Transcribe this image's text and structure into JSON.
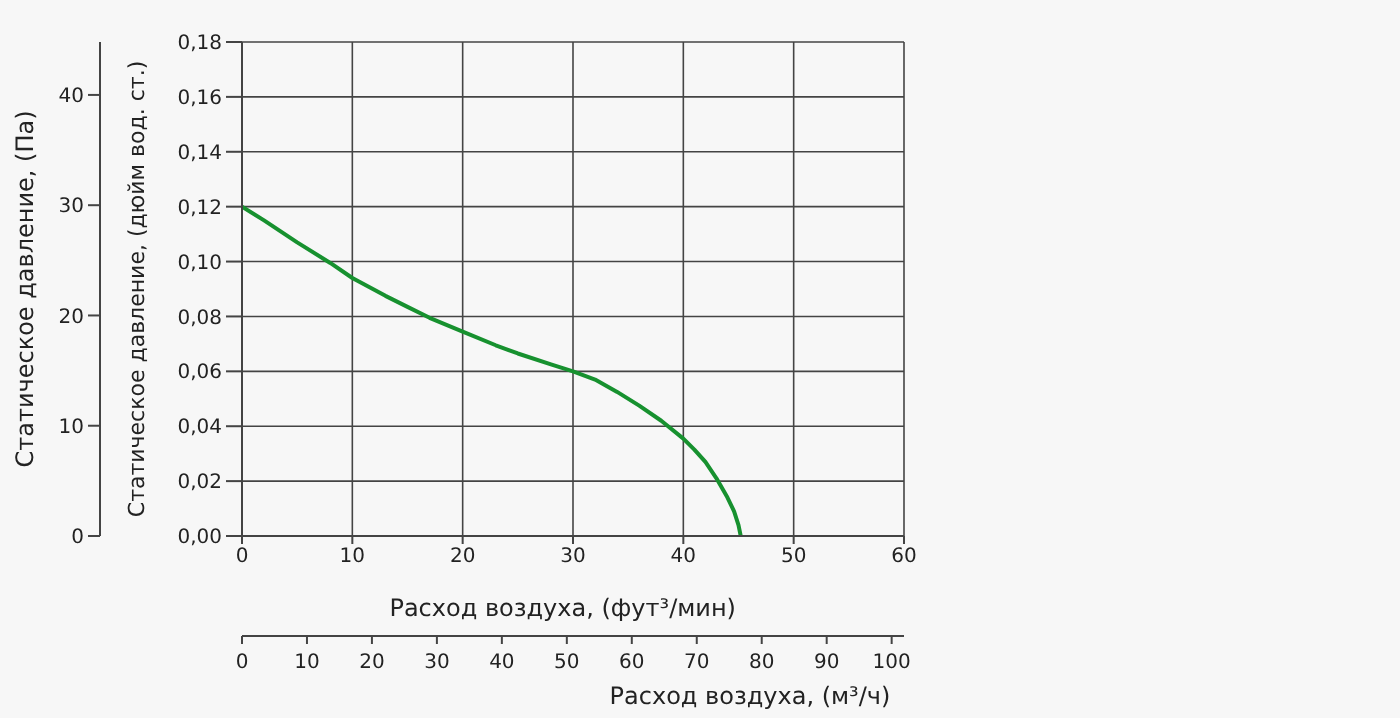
{
  "chart_data": {
    "type": "line",
    "xlabel": "Расход воздуха, (фут³/мин)",
    "ylabel": "Статическое давление, (дюйм вод. ст.)",
    "y2label": "Статическое давление, (Па)",
    "x2label": "Расход воздуха, (м³/ч)",
    "x": [
      0,
      2,
      5,
      8,
      10,
      13,
      15,
      17,
      20,
      23,
      25,
      28,
      30,
      32,
      34,
      36,
      38,
      40,
      41,
      42,
      43,
      44,
      44.6,
      45,
      45.2
    ],
    "series": [
      {
        "color": "#17912f",
        "values": [
          0.12,
          0.115,
          0.107,
          0.0995,
          0.094,
          0.0875,
          0.0835,
          0.0795,
          0.0745,
          0.0695,
          0.0665,
          0.0625,
          0.06,
          0.057,
          0.0525,
          0.0475,
          0.042,
          0.0355,
          0.0315,
          0.027,
          0.021,
          0.014,
          0.009,
          0.004,
          0
        ]
      }
    ],
    "xlim": [
      0,
      60
    ],
    "xticks": [
      0,
      10,
      20,
      30,
      40,
      50,
      60
    ],
    "ylim": [
      0,
      0.18
    ],
    "yticks": [
      {
        "value": 0,
        "label": "0,00"
      },
      {
        "value": 0.02,
        "label": "0,02"
      },
      {
        "value": 0.04,
        "label": "0,04"
      },
      {
        "value": 0.06,
        "label": "0,06"
      },
      {
        "value": 0.08,
        "label": "0,08"
      },
      {
        "value": 0.1,
        "label": "0,10"
      },
      {
        "value": 0.12,
        "label": "0,12"
      },
      {
        "value": 0.14,
        "label": "0,14"
      },
      {
        "value": 0.16,
        "label": "0,16"
      },
      {
        "value": 0.18,
        "label": "0,18"
      }
    ],
    "y2lim": [
      0,
      44.8
    ],
    "y2ticks": [
      0,
      10,
      20,
      30,
      40
    ],
    "x2lim": [
      0,
      101.9
    ],
    "x2ticks": [
      0,
      10,
      20,
      30,
      40,
      50,
      60,
      70,
      80,
      90,
      100
    ],
    "grid": true,
    "legend": false,
    "marker": "none",
    "line_style": "solid"
  }
}
